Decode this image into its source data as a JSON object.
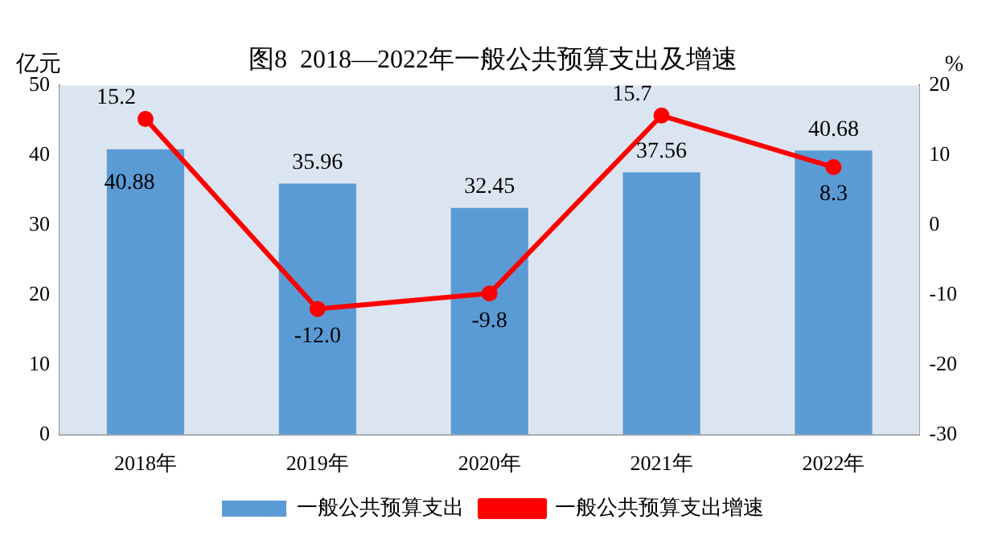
{
  "chart_data": {
    "type": "bar",
    "title": "图8  2018—2022年一般公共预算支出及增速",
    "ylabel": "亿元",
    "y2label": "%",
    "categories": [
      "2018年",
      "2019年",
      "2020年",
      "2021年",
      "2022年"
    ],
    "series": [
      {
        "name": "一般公共预算支出",
        "type": "bar",
        "color": "#5b9bd5",
        "values": [
          40.88,
          35.96,
          32.45,
          37.56,
          40.68
        ],
        "value_labels": [
          "40.88",
          "35.96",
          "32.45",
          "37.56",
          "40.68"
        ]
      },
      {
        "name": "一般公共预算支出增速",
        "type": "line",
        "axis": "y2",
        "color": "#ff0000",
        "values": [
          15.2,
          -12.0,
          -9.8,
          15.7,
          8.3
        ],
        "value_labels": [
          "15.2",
          "-12.0",
          "-9.8",
          "15.7",
          "8.3"
        ]
      }
    ],
    "ylim": [
      0,
      50
    ],
    "yticks": [
      0,
      10,
      20,
      30,
      40,
      50
    ],
    "y2lim": [
      -30,
      20
    ],
    "y2ticks": [
      -30,
      -20,
      -10,
      0,
      10,
      20
    ],
    "grid": false,
    "legend": "bottom",
    "marker": "circle",
    "line_style": "solid"
  }
}
